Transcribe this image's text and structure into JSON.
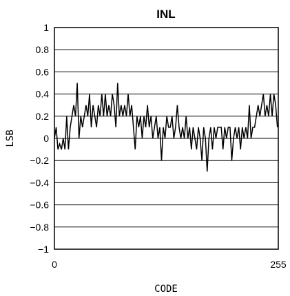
{
  "chart_data": {
    "type": "line",
    "title": "INL",
    "xlabel": "CODE",
    "ylabel": "LSB",
    "xlim": [
      0,
      255
    ],
    "ylim": [
      -1,
      1
    ],
    "x_ticks": [
      0,
      255
    ],
    "x_tick_labels": [
      "0",
      "255"
    ],
    "y_ticks": [
      1,
      0.8,
      0.6,
      0.4,
      0.2,
      0,
      -0.2,
      -0.4,
      -0.6,
      -0.8,
      -1
    ],
    "y_tick_labels": [
      "1",
      "0.8",
      "0.6",
      "0.4",
      "0.2",
      "0",
      "−0.2",
      "−0.4",
      "−0.6",
      "−0.8",
      "−1"
    ],
    "grid": {
      "horizontal": true,
      "vertical": false
    },
    "series": [
      {
        "x": [
          0,
          2,
          4,
          6,
          8,
          10,
          12,
          14,
          16,
          18,
          20,
          22,
          24,
          26,
          28,
          30,
          32,
          34,
          36,
          38,
          40,
          42,
          44,
          46,
          48,
          50,
          52,
          54,
          56,
          58,
          60,
          62,
          64,
          66,
          68,
          70,
          72,
          74,
          76,
          78,
          80,
          82,
          84,
          86,
          88,
          90,
          92,
          94,
          96,
          98,
          100,
          102,
          104,
          106,
          108,
          110,
          112,
          114,
          116,
          118,
          120,
          122,
          124,
          126,
          128,
          130,
          132,
          134,
          136,
          138,
          140,
          142,
          144,
          146,
          148,
          150,
          152,
          154,
          156,
          158,
          160,
          162,
          164,
          166,
          168,
          170,
          172,
          174,
          176,
          178,
          180,
          182,
          184,
          186,
          188,
          190,
          192,
          194,
          196,
          198,
          200,
          202,
          204,
          206,
          208,
          210,
          212,
          214,
          216,
          218,
          220,
          222,
          224,
          226,
          228,
          230,
          232,
          234,
          236,
          238,
          240,
          242,
          244,
          246,
          248,
          250,
          252,
          254
        ],
        "values": [
          0,
          0.1,
          -0.1,
          -0.05,
          -0.1,
          0,
          -0.1,
          0.2,
          -0.1,
          0.1,
          0.2,
          0.3,
          0.2,
          0.5,
          0,
          0.2,
          0.1,
          0.2,
          0.3,
          0.2,
          0.4,
          0.1,
          0.3,
          0.2,
          0.1,
          0.3,
          0.2,
          0.4,
          0.2,
          0.4,
          0.2,
          0.3,
          0.2,
          0.4,
          0.3,
          0.1,
          0.5,
          0.2,
          0.3,
          0.2,
          0.3,
          0.2,
          0.4,
          0.2,
          0.3,
          0.1,
          -0.1,
          0.2,
          0.1,
          0.2,
          0,
          0.2,
          0.1,
          0.3,
          0.1,
          0.2,
          0,
          0.1,
          0.2,
          0,
          0.1,
          -0.2,
          0.1,
          0,
          0.2,
          0.1,
          0.1,
          0.2,
          0,
          0.1,
          0.3,
          0.1,
          0,
          0.1,
          0,
          0.2,
          0,
          0.1,
          -0.1,
          0.1,
          0,
          -0.1,
          0.1,
          0,
          -0.2,
          0.1,
          0,
          -0.3,
          0,
          0.1,
          -0.1,
          0.1,
          0,
          0.1,
          0.1,
          0.1,
          -0.1,
          0.1,
          0,
          0.1,
          0.1,
          -0.2,
          0,
          0.1,
          0,
          0.1,
          -0.1,
          0.1,
          0,
          0.1,
          0,
          0.3,
          0,
          0.1,
          0.1,
          0.2,
          0.3,
          0.2,
          0.3,
          0.4,
          0.2,
          0.3,
          0.2,
          0.4,
          0.2,
          0.4,
          0.3,
          0.1
        ]
      }
    ]
  }
}
